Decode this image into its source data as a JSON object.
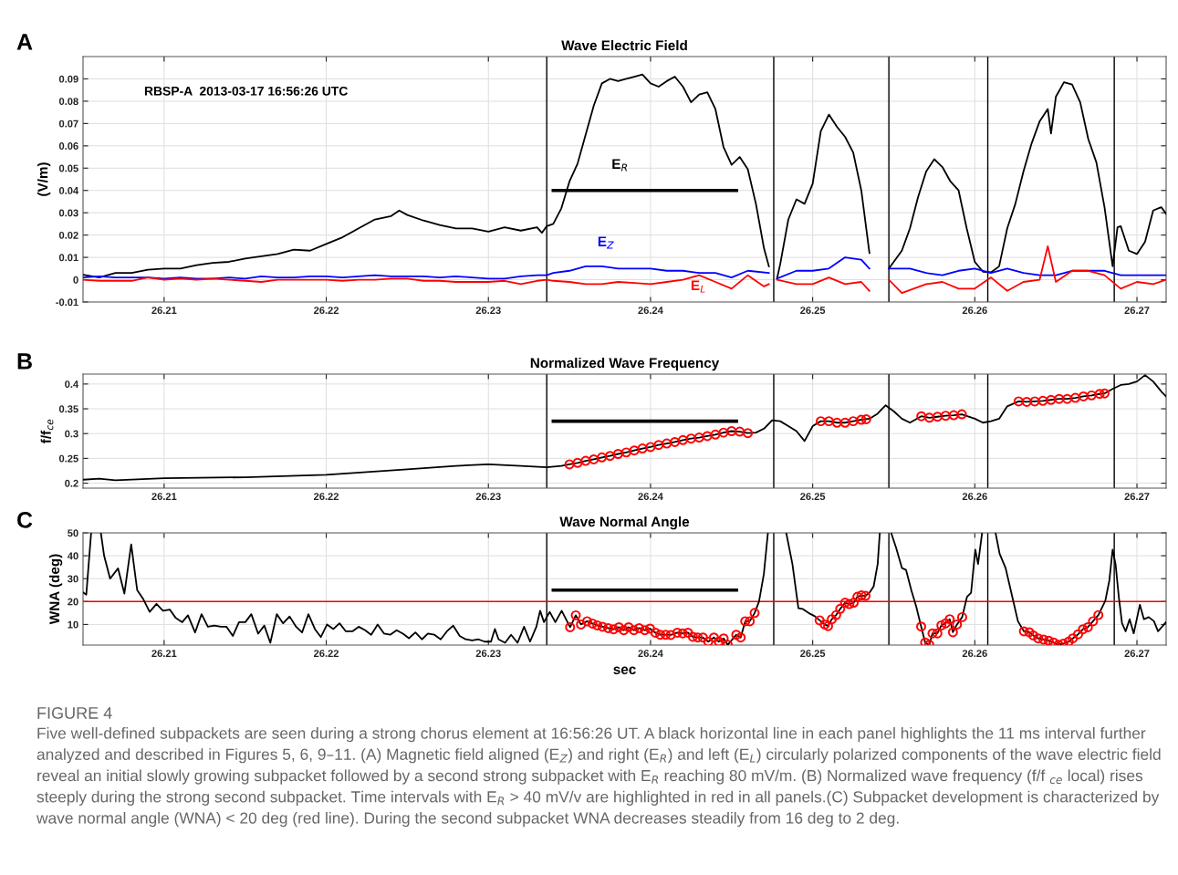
{
  "chart_data": [
    {
      "type": "line",
      "title": "Wave Electric Field",
      "ylabel": "(V/m)",
      "xlim": [
        26.205,
        26.2718
      ],
      "ylim": [
        -0.01,
        0.1
      ],
      "xticks": [
        26.21,
        26.22,
        26.23,
        26.24,
        26.25,
        26.26,
        26.27
      ],
      "yticks": [
        -0.01,
        0,
        0.01,
        0.02,
        0.03,
        0.04,
        0.05,
        0.06,
        0.07,
        0.08,
        0.09
      ],
      "grid": true,
      "annotations": [
        "A",
        "RBSP-A  2013-03-17 16:56:26 UTC"
      ],
      "ref_lines": [
        {
          "axis": "x",
          "value": 26.2336,
          "color": "#000000"
        },
        {
          "axis": "x",
          "value": 26.2476,
          "color": "#000000"
        },
        {
          "axis": "x",
          "value": 26.2547,
          "color": "#000000"
        },
        {
          "axis": "x",
          "value": 26.2608,
          "color": "#000000"
        },
        {
          "axis": "x",
          "value": 26.2686,
          "color": "#000000"
        }
      ],
      "series": [
        {
          "name": "E$_{R}$",
          "type": "line",
          "color": "#000000",
          "x": [
            26.205,
            26.206,
            26.207,
            26.208,
            26.209,
            26.21,
            26.211,
            26.212,
            26.213,
            26.214,
            26.215,
            26.216,
            26.217,
            26.218,
            26.219,
            26.22,
            26.221,
            26.222,
            26.223,
            26.224,
            26.2245,
            26.225,
            26.226,
            26.227,
            26.228,
            26.229,
            26.23,
            26.231,
            26.232,
            26.233,
            26.2333,
            26.2336,
            26.234,
            26.2345,
            26.235,
            26.2355,
            26.236,
            26.2365,
            26.237,
            26.2375,
            26.238,
            26.2385,
            26.239,
            26.2395,
            26.24,
            26.2405,
            26.241,
            26.2415,
            26.242,
            26.2425,
            26.243,
            26.2435,
            26.244,
            26.2445,
            26.245,
            26.2455,
            26.246,
            26.2465,
            26.247,
            26.2473,
            26.2475,
            26.2478,
            26.248,
            26.2485,
            26.249,
            26.2495,
            26.25,
            26.2505,
            26.251,
            26.2515,
            26.252,
            26.2525,
            26.253,
            26.2535,
            26.2541,
            26.2547,
            26.255,
            26.2555,
            26.256,
            26.2565,
            26.257,
            26.2575,
            26.258,
            26.2585,
            26.259,
            26.2595,
            26.26,
            26.2605,
            26.261,
            26.2615,
            26.262,
            26.2625,
            26.263,
            26.2635,
            26.264,
            26.2645,
            26.2647,
            26.265,
            26.2655,
            26.266,
            26.2665,
            26.267,
            26.2675,
            26.268,
            26.2685,
            26.2688,
            26.269,
            26.2695,
            26.27,
            26.2705,
            26.271,
            26.2715,
            26.2718
          ],
          "values": [
            0.0022,
            0.001,
            0.003,
            0.003,
            0.0045,
            0.005,
            0.005,
            0.0065,
            0.0075,
            0.008,
            0.0095,
            0.0105,
            0.0115,
            0.0135,
            0.013,
            0.016,
            0.019,
            0.023,
            0.027,
            0.0285,
            0.031,
            0.029,
            0.0265,
            0.0245,
            0.023,
            0.023,
            0.0215,
            0.0235,
            0.022,
            0.0235,
            0.021,
            0.024,
            0.025,
            0.032,
            0.044,
            0.052,
            0.065,
            0.078,
            0.088,
            0.09,
            0.089,
            0.09,
            0.091,
            0.092,
            0.088,
            0.0865,
            0.089,
            0.091,
            0.0865,
            0.0795,
            0.083,
            0.084,
            0.0765,
            0.0595,
            0.0515,
            0.055,
            0.0495,
            0.034,
            0.014,
            0.006,
            null,
            0.0005,
            0.007,
            0.027,
            0.036,
            0.034,
            0.043,
            0.0665,
            0.074,
            0.0685,
            0.064,
            0.057,
            0.04,
            0.012,
            null,
            0.005,
            0.008,
            0.013,
            0.023,
            0.037,
            0.0485,
            0.054,
            0.0505,
            0.044,
            0.04,
            0.023,
            0.008,
            0.0036,
            0.0033,
            0.006,
            0.023,
            0.034,
            0.0485,
            0.061,
            0.071,
            0.0765,
            0.0655,
            0.082,
            0.0885,
            0.0875,
            0.0795,
            0.063,
            0.0525,
            0.0325,
            0.006,
            0.0235,
            0.024,
            0.013,
            0.0115,
            0.017,
            0.031,
            0.0325,
            0.0295
          ]
        },
        {
          "name": "E$_{Z}$",
          "type": "line",
          "color": "#0000ff",
          "x": [
            26.205,
            26.206,
            26.207,
            26.208,
            26.209,
            26.21,
            26.211,
            26.212,
            26.213,
            26.214,
            26.215,
            26.216,
            26.217,
            26.218,
            26.219,
            26.22,
            26.221,
            26.222,
            26.223,
            26.224,
            26.225,
            26.226,
            26.227,
            26.228,
            26.229,
            26.23,
            26.231,
            26.232,
            26.233,
            26.2336,
            26.234,
            26.235,
            26.236,
            26.237,
            26.238,
            26.239,
            26.24,
            26.241,
            26.242,
            26.243,
            26.244,
            26.245,
            26.246,
            26.2473,
            26.2475,
            26.2478,
            26.249,
            26.25,
            26.251,
            26.252,
            26.253,
            26.2535,
            26.2541,
            26.2547,
            26.256,
            26.257,
            26.258,
            26.259,
            26.26,
            26.261,
            26.262,
            26.263,
            26.264,
            26.265,
            26.266,
            26.267,
            26.268,
            26.269,
            26.27,
            26.271,
            26.2718
          ],
          "values": [
            0.001,
            0.0015,
            0.001,
            0.001,
            0.001,
            0.0005,
            0.001,
            0.0005,
            0.0005,
            0.001,
            0.0005,
            0.0015,
            0.001,
            0.001,
            0.0015,
            0.0015,
            0.001,
            0.0015,
            0.002,
            0.0015,
            0.0015,
            0.0015,
            0.001,
            0.0015,
            0.001,
            0.0005,
            0.0005,
            0.0015,
            0.002,
            0.002,
            0.003,
            0.004,
            0.006,
            0.006,
            0.005,
            0.005,
            0.005,
            0.004,
            0.004,
            0.003,
            0.003,
            0.001,
            0.004,
            0.003,
            null,
            0.0005,
            0.004,
            0.004,
            0.005,
            0.01,
            0.009,
            0.005,
            null,
            0.005,
            0.005,
            0.003,
            0.002,
            0.004,
            0.005,
            0.003,
            0.005,
            0.003,
            0.002,
            0.002,
            0.004,
            0.004,
            0.004,
            0.002,
            0.002,
            0.002,
            0.002
          ]
        },
        {
          "name": "E$_{L}$",
          "type": "line",
          "color": "#ff0000",
          "x": [
            26.205,
            26.206,
            26.207,
            26.208,
            26.209,
            26.21,
            26.211,
            26.212,
            26.213,
            26.214,
            26.215,
            26.216,
            26.217,
            26.218,
            26.219,
            26.22,
            26.221,
            26.222,
            26.223,
            26.224,
            26.225,
            26.226,
            26.227,
            26.228,
            26.229,
            26.23,
            26.231,
            26.232,
            26.233,
            26.2336,
            26.234,
            26.235,
            26.236,
            26.237,
            26.238,
            26.239,
            26.24,
            26.241,
            26.242,
            26.243,
            26.244,
            26.245,
            26.246,
            26.247,
            26.2473,
            26.2475,
            26.2478,
            26.249,
            26.25,
            26.251,
            26.252,
            26.253,
            26.2535,
            26.2541,
            26.2547,
            26.2555,
            26.257,
            26.258,
            26.259,
            26.26,
            26.261,
            26.262,
            26.263,
            26.264,
            26.2645,
            26.265,
            26.266,
            26.267,
            26.268,
            26.269,
            26.27,
            26.271,
            26.2718
          ],
          "values": [
            0,
            -0.0005,
            -0.0005,
            -0.0005,
            0.001,
            0,
            0.0005,
            0,
            0.0005,
            0,
            -0.0005,
            -0.001,
            0,
            0,
            0,
            0,
            -0.0005,
            0,
            0,
            0.0005,
            0.0005,
            -0.0005,
            -0.0005,
            -0.001,
            -0.001,
            -0.001,
            -0.0005,
            -0.002,
            -0.0005,
            0,
            -0.0005,
            -0.001,
            -0.002,
            -0.002,
            -0.001,
            -0.0015,
            -0.002,
            -0.001,
            0,
            0.002,
            -0.001,
            -0.004,
            0.002,
            -0.003,
            -0.002,
            null,
            0,
            -0.002,
            -0.002,
            0.001,
            -0.002,
            -0.001,
            -0.005,
            null,
            0,
            -0.006,
            -0.002,
            -0.001,
            -0.004,
            -0.004,
            0.001,
            -0.005,
            -0.001,
            0,
            0.015,
            -0.001,
            0.004,
            0.004,
            0.002,
            -0.004,
            -0.001,
            -0.002,
            0
          ]
        },
        {
          "type": "line",
          "color": "#000000",
          "x": [
            26.234,
            26.2453
          ],
          "values": [
            0.04,
            0.04
          ]
        }
      ]
    },
    {
      "type": "line",
      "title": "Normalized Wave Frequency",
      "ylabel": "f/f$_{ce}$",
      "xlim": [
        26.205,
        26.2718
      ],
      "ylim": [
        0.19,
        0.42
      ],
      "xticks": [
        26.21,
        26.22,
        26.23,
        26.24,
        26.25,
        26.26,
        26.27
      ],
      "yticks": [
        0.2,
        0.25,
        0.3,
        0.35,
        0.4
      ],
      "grid": true,
      "annotations": [
        "B"
      ],
      "ref_lines": [
        {
          "axis": "x",
          "value": 26.2336,
          "color": "#000000"
        },
        {
          "axis": "x",
          "value": 26.2476,
          "color": "#000000"
        },
        {
          "axis": "x",
          "value": 26.2547,
          "color": "#000000"
        },
        {
          "axis": "x",
          "value": 26.2608,
          "color": "#000000"
        },
        {
          "axis": "x",
          "value": 26.2686,
          "color": "#000000"
        }
      ],
      "series": [
        {
          "type": "line",
          "color": "#000000",
          "x": [
            26.205,
            26.206,
            26.207,
            26.21,
            26.215,
            26.22,
            26.225,
            26.228,
            26.23,
            26.232,
            26.2336,
            26.2345,
            26.235,
            26.2355,
            26.236,
            26.2365,
            26.237,
            26.2375,
            26.238,
            26.2385,
            26.239,
            26.2395,
            26.24,
            26.2405,
            26.241,
            26.2415,
            26.242,
            26.2425,
            26.243,
            26.2435,
            26.244,
            26.2445,
            26.245,
            26.2455,
            26.246,
            26.2465,
            26.247,
            26.2475,
            26.248,
            26.2485,
            26.249,
            26.2495,
            26.25,
            26.2505,
            26.251,
            26.2515,
            26.252,
            26.2525,
            26.253,
            26.2535,
            26.254,
            26.2545,
            26.255,
            26.2555,
            26.256,
            26.2567,
            26.2572,
            26.2577,
            26.2582,
            26.2587,
            26.2592,
            26.26,
            26.2605,
            26.261,
            26.2615,
            26.262,
            26.2627,
            26.2632,
            26.2637,
            26.2642,
            26.2647,
            26.2652,
            26.2657,
            26.2662,
            26.2667,
            26.2672,
            26.2677,
            26.268,
            26.2685,
            26.269,
            26.2695,
            26.27,
            26.2705,
            26.271,
            26.2715,
            26.2718
          ],
          "values": [
            0.207,
            0.209,
            0.206,
            0.21,
            0.212,
            0.217,
            0.228,
            0.235,
            0.238,
            0.235,
            0.232,
            0.235,
            0.238,
            0.241,
            0.245,
            0.248,
            0.252,
            0.255,
            0.259,
            0.262,
            0.266,
            0.27,
            0.273,
            0.277,
            0.28,
            0.283,
            0.287,
            0.29,
            0.292,
            0.295,
            0.298,
            0.302,
            0.305,
            0.304,
            0.301,
            0.302,
            0.31,
            0.327,
            0.325,
            0.315,
            0.305,
            0.285,
            0.315,
            0.325,
            0.325,
            0.322,
            0.322,
            0.325,
            0.328,
            0.33,
            0.34,
            0.357,
            0.345,
            0.33,
            0.322,
            0.335,
            0.332,
            0.334,
            0.336,
            0.337,
            0.339,
            0.33,
            0.322,
            0.325,
            0.33,
            0.355,
            0.365,
            0.364,
            0.365,
            0.366,
            0.368,
            0.37,
            0.37,
            0.372,
            0.375,
            0.377,
            0.38,
            0.381,
            0.39,
            0.398,
            0.4,
            0.405,
            0.418,
            0.405,
            0.385,
            0.375
          ]
        },
        {
          "type": "scatter",
          "marker": "circle",
          "color": "#ff0000",
          "x": [
            26.235,
            26.2355,
            26.236,
            26.2365,
            26.237,
            26.2375,
            26.238,
            26.2385,
            26.239,
            26.2395,
            26.24,
            26.2405,
            26.241,
            26.2415,
            26.242,
            26.2425,
            26.243,
            26.2435,
            26.244,
            26.2445,
            26.245,
            26.2455,
            26.246,
            26.2505,
            26.251,
            26.2515,
            26.252,
            26.2525,
            26.253,
            26.2533,
            26.2567,
            26.2572,
            26.2577,
            26.2582,
            26.2587,
            26.2592,
            26.2627,
            26.2632,
            26.2637,
            26.2642,
            26.2647,
            26.2652,
            26.2657,
            26.2662,
            26.2667,
            26.2672,
            26.2677,
            26.268
          ],
          "values": [
            0.238,
            0.241,
            0.245,
            0.248,
            0.252,
            0.255,
            0.259,
            0.262,
            0.266,
            0.27,
            0.273,
            0.277,
            0.28,
            0.283,
            0.287,
            0.29,
            0.292,
            0.295,
            0.298,
            0.302,
            0.305,
            0.304,
            0.301,
            0.325,
            0.325,
            0.322,
            0.322,
            0.325,
            0.328,
            0.329,
            0.335,
            0.332,
            0.334,
            0.336,
            0.337,
            0.339,
            0.365,
            0.364,
            0.365,
            0.366,
            0.368,
            0.37,
            0.37,
            0.372,
            0.375,
            0.377,
            0.38,
            0.381
          ]
        },
        {
          "type": "line",
          "color": "#000000",
          "x": [
            26.234,
            26.2453
          ],
          "values": [
            0.325,
            0.325
          ]
        }
      ]
    },
    {
      "type": "line",
      "title": "Wave Normal Angle",
      "xlabel": "sec",
      "ylabel": "WNA (deg)",
      "xlim": [
        26.205,
        26.2718
      ],
      "ylim": [
        1,
        50
      ],
      "xticks": [
        26.21,
        26.22,
        26.23,
        26.24,
        26.25,
        26.26,
        26.27
      ],
      "yticks": [
        10,
        20,
        30,
        40,
        50
      ],
      "grid": true,
      "annotations": [
        "C",
        "FIGURE 4",
        "Five well-defined subpackets are seen during a strong chorus element at 16:56:26 UT. A black horizontal line in each panel highlights the 11 ms interval further analyzed and described in Figures 5, 6, 9–11. (A) Magnetic field aligned (E$_{Z}$) and right (E$_{R}$) and left (E$_{L}$) circularly polarized components of the wave electric field reveal an initial slowly growing subpacket followed by a second strong subpacket with E$_{R}$ reaching 80 mV/m. (B) Normalized wave frequency (f/f $_{ce}$ local) rises steeply during the strong second subpacket. Time intervals with E$_{R}$ > 40 mV/v are highlighted in red in all panels.(C) Subpacket development is characterized by wave normal angle (WNA) < 20 deg (red line). During the second subpacket WNA decreases steadily from 16 deg to 2 deg."
      ],
      "ref_lines": [
        {
          "axis": "x",
          "value": 26.2336,
          "color": "#000000"
        },
        {
          "axis": "x",
          "value": 26.2476,
          "color": "#000000"
        },
        {
          "axis": "x",
          "value": 26.2547,
          "color": "#000000"
        },
        {
          "axis": "x",
          "value": 26.2608,
          "color": "#000000"
        },
        {
          "axis": "x",
          "value": 26.2686,
          "color": "#000000"
        },
        {
          "axis": "y",
          "value": 20,
          "color": "#ff0000"
        }
      ],
      "series": [
        {
          "type": "line",
          "color": "#000000",
          "x": [
            26.205,
            26.2052,
            26.2055,
            26.2058,
            26.2061,
            26.2063,
            26.20667,
            26.20716,
            26.20755,
            26.20797,
            26.20834,
            26.20872,
            26.20911,
            26.20953,
            26.20993,
            26.21035,
            26.2107,
            26.21112,
            26.21147,
            26.21191,
            26.21231,
            26.2127,
            26.2131,
            26.2135,
            26.21385,
            26.21424,
            26.21462,
            26.21501,
            26.21538,
            26.2158,
            26.21618,
            26.21655,
            26.21695,
            26.21734,
            26.21774,
            26.21814,
            26.21851,
            26.2189,
            26.2193,
            26.21967,
            26.22005,
            26.22044,
            26.22082,
            26.22121,
            26.22161,
            26.222,
            26.2224,
            26.22277,
            26.22317,
            26.22357,
            26.22394,
            26.22434,
            26.22473,
            26.2251,
            26.2255,
            26.2259,
            26.22627,
            26.22667,
            26.22706,
            26.22744,
            26.22783,
            26.22823,
            26.2286,
            26.229,
            26.22939,
            26.22977,
            26.23016,
            26.2304,
            26.23063,
            26.23103,
            26.2314,
            26.2318,
            26.2322,
            26.23257,
            26.23296,
            26.23319,
            26.23343,
            26.23378,
            26.23413,
            26.23452,
            26.23504,
            26.23539,
            26.23571,
            26.23609,
            26.23642,
            26.23672,
            26.23704,
            26.23739,
            26.23772,
            26.23805,
            26.23835,
            26.23865,
            26.23897,
            26.2393,
            26.23965,
            26.23997,
            26.2403,
            26.2406,
            26.24093,
            26.24125,
            26.24165,
            26.24198,
            26.24231,
            26.24261,
            26.24291,
            26.24323,
            26.24356,
            26.24391,
            26.24421,
            26.24451,
            26.24476,
            26.24529,
            26.24556,
            26.24584,
            26.24612,
            26.24642,
            26.24669,
            26.24699,
            26.24724,
            26.2478,
            26.24837,
            26.24875,
            26.24912,
            26.24937,
            26.24975,
            26.25013,
            26.25043,
            26.25075,
            26.25095,
            26.25118,
            26.25145,
            26.2517,
            26.252,
            26.25226,
            26.25253,
            26.25276,
            26.25301,
            26.25326,
            26.25351,
            26.25376,
            26.25401,
            26.25414,
            26.2545,
            26.25484,
            26.25514,
            26.25551,
            26.25576,
            26.25609,
            26.25639,
            26.25669,
            26.25694,
            26.25719,
            26.25739,
            26.25769,
            26.25794,
            26.2582,
            26.25845,
            26.25865,
            26.2589,
            26.25922,
            26.25952,
            26.25977,
            26.26003,
            26.2602,
            26.26045,
            26.2609,
            26.26128,
            26.26153,
            26.2619,
            26.26228,
            26.26266,
            26.26303,
            26.26336,
            26.26361,
            26.26391,
            26.26424,
            26.26456,
            26.26486,
            26.26516,
            26.26546,
            26.26579,
            26.26604,
            26.26637,
            26.26667,
            26.26697,
            26.26729,
            26.26762,
            26.26805,
            26.2683,
            26.2685,
            26.26868,
            26.26888,
            26.26908,
            26.2693,
            26.26955,
            26.2698,
            26.27018,
            26.27043,
            26.27073,
            26.27105,
            26.2713,
            26.2718
          ],
          "values": [
            24,
            23,
            50,
            null,
            50,
            40,
            30,
            34.5,
            23.5,
            45,
            25,
            21,
            15.5,
            19,
            16,
            16.5,
            13,
            11,
            14,
            6.5,
            14.5,
            9,
            9.5,
            9,
            9,
            5,
            11,
            11,
            14.5,
            6,
            9.5,
            2,
            14.5,
            10.5,
            13.5,
            9,
            6.5,
            14.5,
            8,
            4.5,
            10,
            8,
            10.5,
            7,
            7,
            9,
            7.5,
            5.5,
            10,
            6,
            5.5,
            7.5,
            6,
            4,
            6.5,
            3.5,
            6,
            5.5,
            3.5,
            7,
            9.5,
            5,
            3.5,
            3,
            3.5,
            2.5,
            2.5,
            8,
            3.5,
            2,
            5.5,
            2,
            9,
            2.5,
            9,
            16,
            11,
            15.5,
            11,
            16,
            8.8,
            14,
            10,
            11.4,
            10.4,
            9.6,
            9,
            8.4,
            7.9,
            8.8,
            7.5,
            8.8,
            7.5,
            8.4,
            7.5,
            8.2,
            6.4,
            5.5,
            5.5,
            5.4,
            6.4,
            6.1,
            6.4,
            4.6,
            4.3,
            4.3,
            2.5,
            4.3,
            2.5,
            3.9,
            1.1,
            5.5,
            4.3,
            11.4,
            11.4,
            15,
            20,
            32,
            50,
            null,
            50,
            36.4,
            17.1,
            16.8,
            15,
            13.6,
            11.8,
            10,
            9.3,
            12.3,
            14.1,
            16.8,
            19.5,
            18.9,
            19.5,
            22.1,
            22.7,
            22.5,
            23.9,
            26.6,
            36.4,
            50,
            null,
            50,
            43.6,
            34.6,
            33.8,
            24.8,
            17.7,
            9.1,
            2.1,
            1.1,
            6.1,
            6.1,
            9.6,
            10.5,
            12.3,
            6.6,
            10,
            13.2,
            22.1,
            23.9,
            42.7,
            36.4,
            50,
            null,
            50,
            40.9,
            34.6,
            23,
            11.4,
            7,
            6.6,
            5.2,
            3.9,
            3.4,
            2.9,
            2.1,
            1.1,
            1.6,
            2.5,
            3.9,
            5.7,
            7.9,
            8.8,
            11.4,
            14.1,
            20.4,
            29.3,
            42.7,
            36.4,
            22.1,
            10.5,
            7,
            12.3,
            6.1,
            18.6,
            12.3,
            13.2,
            11.4,
            7,
            11
          ]
        },
        {
          "type": "scatter",
          "marker": "circle",
          "color": "#ff0000",
          "x": [
            26.23504,
            26.23539,
            26.23571,
            26.23609,
            26.23642,
            26.23672,
            26.23704,
            26.23739,
            26.23772,
            26.23805,
            26.23835,
            26.23865,
            26.23897,
            26.2393,
            26.23965,
            26.23997,
            26.2403,
            26.2406,
            26.24093,
            26.24125,
            26.24165,
            26.24198,
            26.24231,
            26.24261,
            26.24291,
            26.24323,
            26.24356,
            26.24391,
            26.24421,
            26.24451,
            26.24476,
            26.24529,
            26.24556,
            26.24584,
            26.24612,
            26.24642,
            26.25043,
            26.25075,
            26.25095,
            26.25118,
            26.25145,
            26.2517,
            26.252,
            26.25226,
            26.25253,
            26.25276,
            26.25301,
            26.25326,
            26.25669,
            26.25694,
            26.25719,
            26.25739,
            26.25769,
            26.25794,
            26.2582,
            26.25845,
            26.25865,
            26.2589,
            26.25922,
            26.26303,
            26.26336,
            26.26361,
            26.26391,
            26.26424,
            26.26456,
            26.26486,
            26.26516,
            26.26546,
            26.26579,
            26.26604,
            26.26637,
            26.26667,
            26.26697,
            26.26729,
            26.26762
          ],
          "values": [
            8.8,
            14,
            10,
            11.4,
            10.4,
            9.6,
            9,
            8.4,
            7.9,
            8.8,
            7.5,
            8.8,
            7.5,
            8.4,
            7.5,
            8.2,
            6.4,
            5.5,
            5.5,
            5.4,
            6.4,
            6.1,
            6.4,
            4.6,
            4.3,
            4.3,
            2.5,
            4.3,
            2.5,
            3.9,
            1.1,
            5.5,
            4.3,
            11.4,
            11.4,
            15,
            11.8,
            10,
            9.3,
            12.3,
            14.1,
            16.8,
            19.5,
            18.9,
            19.5,
            22.1,
            22.7,
            22.5,
            9.1,
            2.1,
            1.1,
            6.1,
            6.1,
            9.6,
            10.5,
            12.3,
            6.6,
            10,
            13.2,
            7,
            6.6,
            5.2,
            3.9,
            3.4,
            2.9,
            2.1,
            1.1,
            1.6,
            2.5,
            3.9,
            5.7,
            7.9,
            8.8,
            11.4,
            14.1
          ]
        },
        {
          "type": "line",
          "color": "#000000",
          "x": [
            26.234,
            26.2453
          ],
          "values": [
            25,
            25
          ]
        }
      ]
    }
  ]
}
